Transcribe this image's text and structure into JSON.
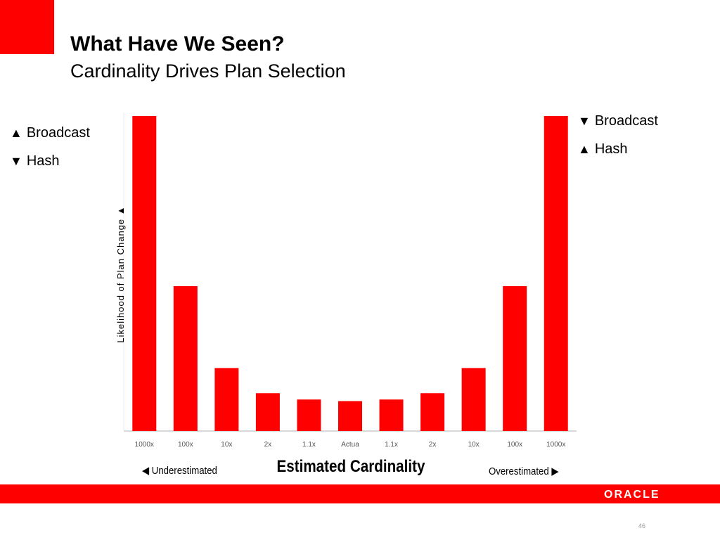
{
  "slide": {
    "title": "What Have We Seen?",
    "subtitle": "Cardinality Drives Plan Selection",
    "page_number": "46",
    "logo_text": "ORACLE"
  },
  "left_labels": [
    {
      "glyph": "▲",
      "text": "Broadcast"
    },
    {
      "glyph": "▼",
      "text": "Hash"
    }
  ],
  "right_labels": [
    {
      "glyph": "▼",
      "text": "Broadcast"
    },
    {
      "glyph": "▲",
      "text": "Hash"
    }
  ],
  "colors": {
    "accent": "#ff0000",
    "bar": "#ff0000",
    "axis": "#d9d9d9",
    "text": "#000000"
  },
  "chart_data": {
    "type": "bar",
    "categories": [
      "1000x",
      "100x",
      "10x",
      "2x",
      "1.1x",
      "Actua",
      "1.1x",
      "2x",
      "10x",
      "100x",
      "1000x"
    ],
    "values": [
      100,
      46,
      20,
      12,
      10,
      9.5,
      10,
      12,
      20,
      46,
      100
    ],
    "xlabel": "Estimated Cardinality",
    "ylabel": "Likelihood of Plan Change ▲",
    "ylim": [
      0,
      100
    ],
    "left_annotation": "◀ Underestimated",
    "right_annotation": "Overestimated ▶",
    "grid": false
  }
}
